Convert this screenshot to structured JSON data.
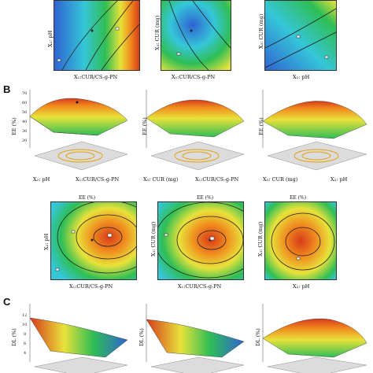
{
  "panels": {
    "B": "B",
    "C": "C"
  },
  "row1": {
    "xlabels": [
      "X₁:CUR/CS-g-PN",
      "X₁:CUR/CS-g-PN",
      "X₂: pH"
    ],
    "ylabels": [
      "X₂: pH",
      "X₃: CUR (mg)",
      "X₃: CUR (mg)"
    ]
  },
  "row2": {
    "zlabel": "EE (%)",
    "z_ticks": [
      "70",
      "60",
      "50",
      "40",
      "30",
      "20"
    ],
    "base_labels": [
      {
        "left": "X₂: pH",
        "right": "X₁:CUR/CS-g-PN"
      },
      {
        "left": "X₃: CUR (mg)",
        "right": "X₁:CUR/CS-g-PN"
      },
      {
        "left": "X₃: CUR (mg)",
        "right": "X₂: pH"
      }
    ]
  },
  "row3": {
    "titles": [
      "EE (%)",
      "EE (%)",
      "EE (%)"
    ],
    "ylabels": [
      "X₂: pH",
      "X₃: CUR (mg)",
      "X₃: CUR (mg)"
    ],
    "xlabels": [
      "X₁:CUR/CS-g-PN",
      "X₁:CUR/CS-g-PN",
      "X₂: pH"
    ]
  },
  "row4": {
    "zlabel": "DL (%)",
    "z_ticks": [
      "12",
      "10",
      "8",
      "6",
      "4"
    ]
  },
  "colors": {
    "red": "#d73a1a",
    "orange": "#f08a1e",
    "yellow": "#e8e23a",
    "green": "#2fbe55",
    "cyan": "#35c6d8",
    "blue": "#2f63d2"
  }
}
